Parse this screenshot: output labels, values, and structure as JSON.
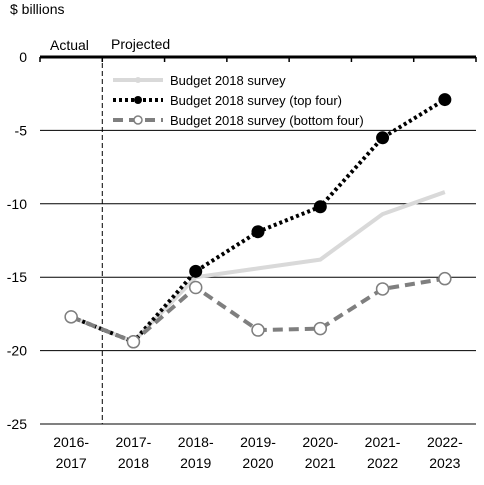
{
  "chart_data": {
    "type": "line",
    "y_unit_label": "$ billions",
    "ylim": [
      -25,
      0
    ],
    "yticks": [
      0,
      -5,
      -10,
      -15,
      -20,
      -25
    ],
    "categories": [
      "2016-2017",
      "2017-2018",
      "2018-2019",
      "2019-2020",
      "2020-2021",
      "2021-2022",
      "2022-2023"
    ],
    "category_lines": [
      [
        "2016-",
        "2017"
      ],
      [
        "2017-",
        "2018"
      ],
      [
        "2018-",
        "2019"
      ],
      [
        "2019-",
        "2020"
      ],
      [
        "2020-",
        "2021"
      ],
      [
        "2021-",
        "2022"
      ],
      [
        "2022-",
        "2023"
      ]
    ],
    "region_labels": {
      "actual": "Actual",
      "projected": "Projected"
    },
    "grid": true,
    "legend_position": "top-center",
    "series": [
      {
        "name": "Budget 2018 survey",
        "style": "solid-light",
        "color": "#d9d9d9",
        "values": [
          -17.7,
          -19.4,
          -15.0,
          -14.4,
          -13.8,
          -10.7,
          -9.2
        ]
      },
      {
        "name": "Budget 2018 survey (top four)",
        "style": "dotted-filled",
        "color": "#000000",
        "values": [
          -17.7,
          -19.4,
          -14.6,
          -11.9,
          -10.2,
          -5.5,
          -2.9
        ]
      },
      {
        "name": "Budget 2018 survey (bottom four)",
        "style": "dashed-open",
        "color": "#7f7f7f",
        "values": [
          -17.7,
          -19.4,
          -15.7,
          -18.6,
          -18.5,
          -15.8,
          -15.1
        ]
      }
    ]
  }
}
